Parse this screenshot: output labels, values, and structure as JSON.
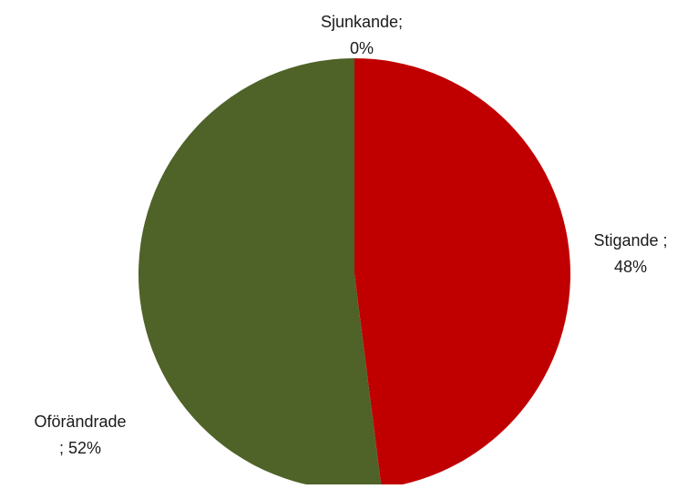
{
  "chart_data": {
    "type": "pie",
    "title": "",
    "categories": [
      "Sjunkande",
      "Stigande",
      "Oförändrade"
    ],
    "values": [
      0,
      48,
      52
    ],
    "labels": [
      {
        "name": "Sjunkande;",
        "value": "0%"
      },
      {
        "name": "Stigande ;",
        "value": "48%"
      },
      {
        "name": "Oförändrade",
        "value": "; 52%"
      }
    ],
    "colors": [
      "#4472C4",
      "#C00000",
      "#4F6228"
    ],
    "start_angle_deg": 0,
    "direction": "clockwise",
    "legend": "none",
    "data_labels": "outside"
  }
}
